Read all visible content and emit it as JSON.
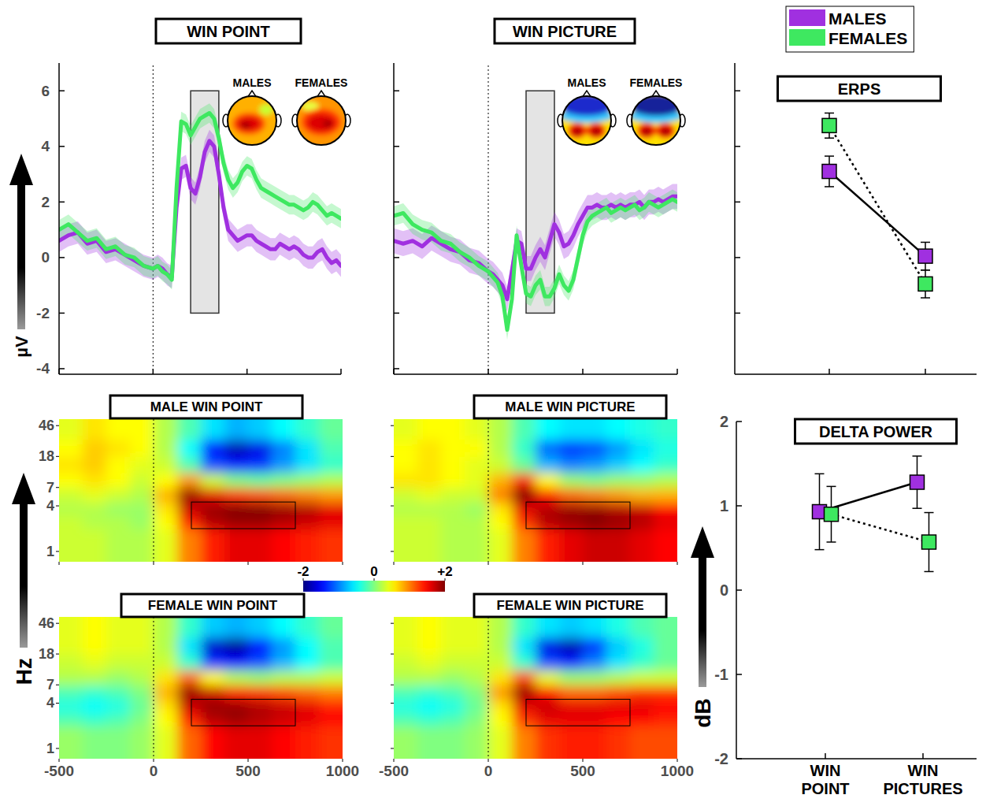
{
  "chart_data": [
    {
      "type": "line",
      "title": "WIN POINT",
      "ylabel": "µV",
      "x": [
        -500,
        -450,
        -400,
        -350,
        -300,
        -250,
        -200,
        -150,
        -100,
        -50,
        0,
        25,
        50,
        75,
        100,
        125,
        150,
        175,
        200,
        225,
        250,
        275,
        300,
        325,
        350,
        375,
        400,
        425,
        450,
        475,
        500,
        525,
        550,
        575,
        600,
        625,
        650,
        675,
        700,
        725,
        750,
        775,
        800,
        825,
        850,
        875,
        900,
        925,
        950,
        975,
        1000
      ],
      "series": [
        {
          "color": "#a030e0",
          "error": 0.4,
          "values": [
            0.6,
            0.8,
            0.9,
            0.5,
            0.6,
            0.2,
            0.3,
            0.1,
            -0.1,
            -0.3,
            -0.4,
            -0.3,
            -0.4,
            -0.6,
            -0.7,
            1.8,
            3.2,
            3.3,
            2.5,
            2.3,
            2.9,
            3.8,
            4.2,
            4.0,
            3.0,
            1.8,
            1.0,
            0.8,
            0.6,
            0.7,
            0.8,
            0.8,
            0.6,
            0.5,
            0.4,
            0.3,
            0.3,
            0.5,
            0.4,
            0.3,
            0.4,
            0.3,
            0.1,
            0.0,
            0.0,
            0.2,
            0.3,
            0.0,
            -0.2,
            -0.1,
            -0.3
          ]
        },
        {
          "color": "#3ee860",
          "error": 0.35,
          "values": [
            1.0,
            1.2,
            0.9,
            0.6,
            0.7,
            0.3,
            0.4,
            0.1,
            0.0,
            -0.3,
            -0.4,
            -0.3,
            -0.5,
            -0.6,
            -0.8,
            2.5,
            4.9,
            4.8,
            4.4,
            4.7,
            5.0,
            5.1,
            5.2,
            5.0,
            4.3,
            3.4,
            2.8,
            2.5,
            2.7,
            3.1,
            3.3,
            3.2,
            2.8,
            2.5,
            2.4,
            2.3,
            2.2,
            2.1,
            2.0,
            1.9,
            1.9,
            1.8,
            1.7,
            1.8,
            2.0,
            1.9,
            1.7,
            1.5,
            1.6,
            1.5,
            1.4
          ]
        }
      ],
      "xlim": [
        -500,
        1000
      ],
      "ylim": [
        -4.2,
        7
      ],
      "xticks": [
        -500,
        0,
        500,
        1000
      ],
      "yticks": [
        -4,
        -2,
        0,
        2,
        4,
        6
      ],
      "tick_labels": "y",
      "onset": 0,
      "window": {
        "time": [
          200,
          350
        ],
        "amplitude": [
          -2,
          6
        ]
      },
      "topomap_labels": [
        "MALES",
        "FEMALES"
      ]
    },
    {
      "type": "line",
      "title": "WIN PICTURE",
      "x": [
        -500,
        -450,
        -400,
        -350,
        -300,
        -250,
        -200,
        -150,
        -100,
        -50,
        0,
        25,
        50,
        75,
        100,
        125,
        150,
        175,
        200,
        225,
        250,
        275,
        300,
        325,
        350,
        375,
        400,
        425,
        450,
        475,
        500,
        525,
        550,
        575,
        600,
        625,
        650,
        675,
        700,
        725,
        750,
        775,
        800,
        825,
        850,
        875,
        900,
        925,
        950,
        975,
        1000
      ],
      "series": [
        {
          "color": "#a030e0",
          "error": 0.45,
          "values": [
            0.6,
            0.5,
            0.6,
            0.4,
            0.7,
            0.5,
            0.3,
            0.2,
            -0.1,
            -0.2,
            -0.5,
            -0.6,
            -0.8,
            -1.0,
            -1.5,
            -0.5,
            0.6,
            0.5,
            -0.4,
            -0.4,
            0.0,
            0.3,
            0.0,
            0.6,
            1.2,
            0.9,
            0.4,
            0.5,
            0.8,
            1.2,
            1.5,
            1.8,
            1.8,
            1.9,
            1.8,
            1.8,
            1.9,
            1.8,
            1.9,
            1.8,
            1.9,
            1.9,
            2.0,
            1.8,
            2.0,
            2.0,
            2.1,
            2.0,
            2.1,
            2.2,
            2.2
          ]
        },
        {
          "color": "#3ee860",
          "error": 0.35,
          "values": [
            1.5,
            1.6,
            1.2,
            1.0,
            0.9,
            0.6,
            0.5,
            0.2,
            0.0,
            -0.3,
            -0.5,
            -0.7,
            -0.9,
            -1.4,
            -2.6,
            -1.5,
            0.8,
            -0.3,
            -1.3,
            -1.4,
            -1.0,
            -0.8,
            -1.4,
            -1.4,
            -1.1,
            -0.6,
            -1.0,
            -1.2,
            -0.8,
            0.0,
            0.8,
            1.3,
            1.5,
            1.6,
            1.7,
            1.8,
            1.6,
            1.7,
            1.8,
            1.7,
            1.8,
            1.9,
            1.7,
            1.8,
            2.0,
            1.9,
            1.8,
            1.9,
            2.0,
            2.1,
            2.0
          ]
        }
      ],
      "xlim": [
        -500,
        1000
      ],
      "ylim": [
        -4.2,
        7
      ],
      "xticks": [
        -500,
        0,
        500,
        1000
      ],
      "yticks": [
        -4,
        -2,
        0,
        2,
        4,
        6
      ],
      "tick_labels": false,
      "onset": 0,
      "window": {
        "time": [
          200,
          350
        ],
        "amplitude": [
          -2,
          6
        ]
      },
      "topomap_labels": [
        "MALES",
        "FEMALES"
      ]
    },
    {
      "type": "point",
      "title": "ERPS",
      "categories": [
        null,
        null
      ],
      "series": [
        {
          "name": "MALES",
          "color": "#a030e0",
          "values": [
            3.1,
            0.05
          ],
          "errors": [
            0.55,
            0.5
          ],
          "line_style": "solid",
          "marker": "square"
        },
        {
          "name": "FEMALES",
          "color": "#3ee860",
          "values": [
            4.75,
            -0.95
          ],
          "errors": [
            0.45,
            0.5
          ],
          "line_style": "dotted",
          "marker": "square"
        }
      ],
      "ylim": [
        -4.2,
        7
      ],
      "yticks": [
        -2,
        0,
        2,
        4,
        6
      ],
      "tick_labels": false,
      "legend": "top"
    },
    {
      "type": "heatmap",
      "title": "MALE WIN POINT",
      "log": "y",
      "tick_labels": "y",
      "onset": 0,
      "x_edges": [
        -500,
        -375,
        -250,
        -125,
        0,
        125,
        250,
        375,
        500,
        625,
        750,
        875,
        1000
      ],
      "y_edges": [
        0.73,
        2,
        3,
        4.5,
        7,
        11,
        18,
        30,
        56
      ],
      "cells": [
        [
          0.3,
          0.3,
          0.2,
          0.2,
          0.4,
          1.0,
          1.4,
          1.6,
          1.6,
          1.5,
          1.4,
          1.3
        ],
        [
          0.3,
          0.2,
          0.2,
          0.1,
          0.5,
          1.4,
          1.8,
          1.9,
          1.9,
          1.8,
          1.7,
          1.6
        ],
        [
          0.2,
          0.2,
          0.1,
          0.1,
          0.6,
          1.7,
          1.9,
          2.0,
          2.0,
          1.9,
          1.8,
          1.6
        ],
        [
          0.3,
          0.4,
          0.3,
          0.2,
          0.8,
          1.9,
          1.6,
          1.3,
          1.2,
          1.1,
          1.0,
          0.9
        ],
        [
          0.5,
          0.6,
          0.5,
          0.3,
          0.5,
          0.9,
          0.3,
          0.0,
          -0.1,
          0.0,
          0.1,
          0.2
        ],
        [
          0.6,
          0.7,
          0.5,
          0.4,
          0.3,
          -0.2,
          -1.2,
          -1.4,
          -1.3,
          -0.9,
          -0.6,
          -0.3
        ],
        [
          0.5,
          0.7,
          0.6,
          0.5,
          0.2,
          -0.5,
          -1.5,
          -1.8,
          -1.6,
          -1.0,
          -0.6,
          -0.2
        ],
        [
          0.4,
          0.6,
          0.5,
          0.5,
          0.2,
          -0.2,
          -0.6,
          -0.8,
          -0.7,
          -0.5,
          -0.3,
          -0.1
        ]
      ],
      "xlim": [
        -500,
        1000
      ],
      "ylim": [
        0.73,
        56
      ],
      "xticks": [
        -500,
        0,
        500,
        1000
      ],
      "yticks": [
        1,
        4,
        7,
        18,
        46
      ],
      "roi": {
        "time": [
          200,
          750
        ],
        "freq": [
          2,
          4.5
        ]
      }
    },
    {
      "type": "heatmap",
      "title": "MALE WIN PICTURE",
      "log": "y",
      "tick_labels": false,
      "onset": 0,
      "x_edges": [
        -500,
        -375,
        -250,
        -125,
        0,
        125,
        250,
        375,
        500,
        625,
        750,
        875,
        1000
      ],
      "y_edges": [
        0.73,
        2,
        3,
        4.5,
        7,
        11,
        18,
        30,
        56
      ],
      "cells": [
        [
          0.3,
          0.3,
          0.2,
          0.2,
          0.4,
          1.0,
          1.4,
          1.6,
          1.7,
          1.7,
          1.6,
          1.5
        ],
        [
          0.3,
          0.3,
          0.2,
          0.2,
          0.5,
          1.3,
          1.8,
          1.9,
          2.0,
          1.9,
          1.8,
          1.6
        ],
        [
          0.2,
          0.2,
          0.2,
          0.1,
          0.6,
          1.6,
          1.8,
          1.9,
          1.9,
          1.8,
          1.7,
          1.5
        ],
        [
          0.3,
          0.4,
          0.3,
          0.3,
          1.0,
          2.0,
          1.5,
          1.1,
          1.0,
          0.9,
          0.8,
          0.8
        ],
        [
          0.6,
          0.6,
          0.5,
          0.4,
          0.8,
          1.4,
          0.5,
          0.1,
          0.0,
          0.1,
          0.1,
          0.2
        ],
        [
          0.5,
          0.6,
          0.5,
          0.4,
          0.3,
          -0.1,
          -0.8,
          -1.0,
          -0.9,
          -0.7,
          -0.5,
          -0.3
        ],
        [
          0.5,
          0.6,
          0.5,
          0.5,
          0.2,
          -0.3,
          -1.1,
          -1.3,
          -1.2,
          -0.9,
          -0.6,
          -0.4
        ],
        [
          0.4,
          0.5,
          0.5,
          0.4,
          0.2,
          -0.2,
          -0.5,
          -0.6,
          -0.6,
          -0.5,
          -0.4,
          -0.3
        ]
      ],
      "xlim": [
        -500,
        1000
      ],
      "ylim": [
        0.73,
        56
      ],
      "xticks": [
        -500,
        0,
        500,
        1000
      ],
      "yticks": [
        1,
        4,
        7,
        18,
        46
      ],
      "roi": {
        "time": [
          200,
          750
        ],
        "freq": [
          2,
          4.5
        ]
      }
    },
    {
      "type": "heatmap",
      "title": "FEMALE WIN POINT",
      "ylabel": "Hz",
      "log": "y",
      "tick_labels": true,
      "onset": 0,
      "x_edges": [
        -500,
        -375,
        -250,
        -125,
        0,
        125,
        250,
        375,
        500,
        625,
        750,
        875,
        1000
      ],
      "y_edges": [
        0.73,
        2,
        3,
        4.5,
        7,
        11,
        18,
        30,
        56
      ],
      "cells": [
        [
          0.1,
          0.0,
          0.0,
          0.1,
          0.4,
          1.1,
          1.5,
          1.6,
          1.6,
          1.5,
          1.4,
          1.3
        ],
        [
          -0.2,
          -0.3,
          -0.2,
          0.0,
          0.5,
          1.4,
          1.8,
          1.9,
          1.8,
          1.7,
          1.6,
          1.5
        ],
        [
          -0.4,
          -0.5,
          -0.4,
          -0.1,
          0.6,
          1.7,
          1.9,
          1.9,
          1.8,
          1.7,
          1.6,
          1.4
        ],
        [
          -0.2,
          -0.3,
          -0.2,
          0.0,
          0.8,
          1.9,
          1.7,
          1.4,
          1.3,
          1.2,
          1.1,
          1.0
        ],
        [
          0.2,
          0.2,
          0.1,
          0.2,
          0.6,
          1.1,
          0.5,
          0.2,
          0.1,
          0.2,
          0.2,
          0.3
        ],
        [
          0.3,
          0.4,
          0.3,
          0.3,
          0.3,
          -0.3,
          -1.3,
          -1.5,
          -1.2,
          -0.8,
          -0.5,
          -0.2
        ],
        [
          0.4,
          0.5,
          0.4,
          0.4,
          0.2,
          -0.6,
          -1.7,
          -1.9,
          -1.5,
          -0.9,
          -0.5,
          -0.2
        ],
        [
          0.4,
          0.5,
          0.4,
          0.4,
          0.2,
          -0.3,
          -0.7,
          -0.8,
          -0.7,
          -0.5,
          -0.3,
          -0.1
        ]
      ],
      "xlim": [
        -500,
        1000
      ],
      "ylim": [
        0.73,
        56
      ],
      "xticks": [
        -500,
        0,
        500,
        1000
      ],
      "yticks": [
        1,
        4,
        7,
        18,
        46
      ],
      "roi": {
        "time": [
          200,
          750
        ],
        "freq": [
          2,
          4.5
        ]
      }
    },
    {
      "type": "heatmap",
      "title": "FEMALE WIN PICTURE",
      "log": "y",
      "tick_labels": "x",
      "onset": 0,
      "x_edges": [
        -500,
        -375,
        -250,
        -125,
        0,
        125,
        250,
        375,
        500,
        625,
        750,
        875,
        1000
      ],
      "y_edges": [
        0.73,
        2,
        3,
        4.5,
        7,
        11,
        18,
        30,
        56
      ],
      "cells": [
        [
          0.1,
          0.0,
          0.0,
          0.1,
          0.4,
          1.0,
          1.3,
          1.4,
          1.4,
          1.3,
          1.2,
          1.2
        ],
        [
          -0.2,
          -0.3,
          -0.2,
          0.0,
          0.5,
          1.3,
          1.6,
          1.6,
          1.6,
          1.5,
          1.5,
          1.4
        ],
        [
          -0.4,
          -0.5,
          -0.4,
          -0.1,
          0.6,
          1.6,
          1.7,
          1.6,
          1.6,
          1.6,
          1.6,
          1.5
        ],
        [
          -0.2,
          -0.3,
          -0.2,
          0.0,
          0.9,
          1.9,
          1.5,
          1.1,
          1.1,
          1.2,
          1.3,
          1.3
        ],
        [
          0.2,
          0.2,
          0.1,
          0.2,
          0.6,
          1.2,
          0.4,
          0.1,
          0.1,
          0.2,
          0.3,
          0.3
        ],
        [
          0.3,
          0.4,
          0.3,
          0.3,
          0.3,
          -0.3,
          -1.2,
          -1.4,
          -1.0,
          -0.6,
          -0.3,
          -0.1
        ],
        [
          0.4,
          0.5,
          0.4,
          0.4,
          0.2,
          -0.6,
          -1.6,
          -1.8,
          -1.3,
          -0.7,
          -0.4,
          -0.1
        ],
        [
          0.4,
          0.5,
          0.4,
          0.4,
          0.2,
          -0.3,
          -0.6,
          -0.7,
          -0.6,
          -0.4,
          -0.2,
          -0.1
        ]
      ],
      "xlim": [
        -500,
        1000
      ],
      "ylim": [
        0.73,
        56
      ],
      "xticks": [
        -500,
        0,
        500,
        1000
      ],
      "yticks": [
        1,
        4,
        7,
        18,
        46
      ],
      "roi": {
        "time": [
          200,
          750
        ],
        "freq": [
          2,
          4.5
        ]
      }
    },
    {
      "type": "point",
      "title": "DELTA POWER",
      "ylabel": "dB",
      "categories": [
        "WIN POINT",
        "WIN PICTURES"
      ],
      "series": [
        {
          "color": "#a030e0",
          "values": [
            0.93,
            1.28
          ],
          "errors": [
            0.45,
            0.31
          ],
          "line_style": "solid",
          "marker": "square"
        },
        {
          "color": "#3ee860",
          "values": [
            0.9,
            0.57
          ],
          "errors": [
            0.33,
            0.35
          ],
          "line_style": "dotted",
          "marker": "square"
        }
      ],
      "ylim": [
        -2,
        2
      ],
      "yticks": [
        -2,
        -1,
        0,
        1,
        2
      ],
      "tick_labels": true
    }
  ],
  "colorbar": {
    "range": [
      -2,
      2
    ],
    "ticks": [
      -2,
      0,
      {
        "value": 2,
        "label": "+2"
      }
    ]
  }
}
